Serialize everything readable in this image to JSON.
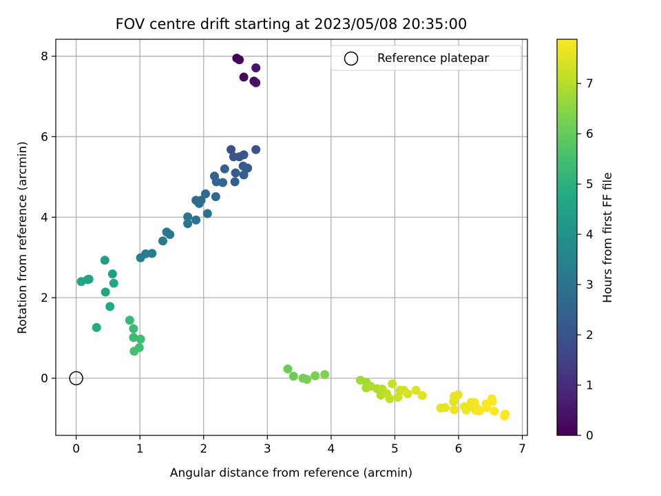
{
  "chart_data": {
    "type": "scatter",
    "title": "FOV centre drift starting at 2023/05/08 20:35:00",
    "xlabel": "Angular distance from reference (arcmin)",
    "ylabel": "Rotation from reference (arcmin)",
    "xlim": [
      -0.32,
      7.08
    ],
    "ylim": [
      -1.42,
      8.42
    ],
    "xticks": [
      0,
      1,
      2,
      3,
      4,
      5,
      6,
      7
    ],
    "yticks": [
      0,
      2,
      4,
      6,
      8
    ],
    "grid": true,
    "legend": {
      "placement": "top-right",
      "label": "Reference platepar"
    },
    "reference_point": {
      "x": 0,
      "y": 0
    },
    "colorbar": {
      "label": "Hours from first FF file",
      "range": [
        0,
        7.88
      ],
      "ticks": [
        0,
        1,
        2,
        3,
        4,
        5,
        6,
        7
      ],
      "colormap": "viridis"
    },
    "points": [
      {
        "x": 2.52,
        "y": 7.95,
        "t": 0.0
      },
      {
        "x": 2.56,
        "y": 7.91,
        "t": 0.1
      },
      {
        "x": 2.63,
        "y": 7.48,
        "t": 0.2
      },
      {
        "x": 2.79,
        "y": 7.38,
        "t": 0.3
      },
      {
        "x": 2.82,
        "y": 7.34,
        "t": 0.4
      },
      {
        "x": 2.82,
        "y": 7.71,
        "t": 0.5
      },
      {
        "x": 2.43,
        "y": 5.68,
        "t": 1.95
      },
      {
        "x": 2.82,
        "y": 5.68,
        "t": 2.0
      },
      {
        "x": 2.47,
        "y": 5.5,
        "t": 2.05
      },
      {
        "x": 2.56,
        "y": 5.5,
        "t": 2.1
      },
      {
        "x": 2.63,
        "y": 5.55,
        "t": 2.15
      },
      {
        "x": 2.62,
        "y": 5.27,
        "t": 2.2
      },
      {
        "x": 2.69,
        "y": 5.22,
        "t": 2.25
      },
      {
        "x": 2.5,
        "y": 5.1,
        "t": 2.3
      },
      {
        "x": 2.63,
        "y": 5.05,
        "t": 2.35
      },
      {
        "x": 2.49,
        "y": 4.88,
        "t": 2.4
      },
      {
        "x": 2.33,
        "y": 5.2,
        "t": 2.45
      },
      {
        "x": 2.17,
        "y": 5.02,
        "t": 2.5
      },
      {
        "x": 2.2,
        "y": 4.88,
        "t": 2.55
      },
      {
        "x": 2.3,
        "y": 4.86,
        "t": 2.6
      },
      {
        "x": 2.19,
        "y": 4.51,
        "t": 2.65
      },
      {
        "x": 2.03,
        "y": 4.58,
        "t": 2.7
      },
      {
        "x": 1.96,
        "y": 4.42,
        "t": 2.75
      },
      {
        "x": 1.88,
        "y": 4.42,
        "t": 2.8
      },
      {
        "x": 1.93,
        "y": 4.34,
        "t": 2.85
      },
      {
        "x": 2.06,
        "y": 4.09,
        "t": 2.9
      },
      {
        "x": 1.75,
        "y": 4.01,
        "t": 2.95
      },
      {
        "x": 1.88,
        "y": 3.93,
        "t": 3.0
      },
      {
        "x": 1.75,
        "y": 3.84,
        "t": 3.05
      },
      {
        "x": 1.42,
        "y": 3.63,
        "t": 3.1
      },
      {
        "x": 1.47,
        "y": 3.57,
        "t": 3.15
      },
      {
        "x": 1.36,
        "y": 3.41,
        "t": 3.2
      },
      {
        "x": 1.19,
        "y": 3.1,
        "t": 3.25
      },
      {
        "x": 1.09,
        "y": 3.09,
        "t": 3.3
      },
      {
        "x": 1.01,
        "y": 2.99,
        "t": 3.35
      },
      {
        "x": 0.45,
        "y": 2.93,
        "t": 4.4
      },
      {
        "x": 0.57,
        "y": 2.59,
        "t": 4.45
      },
      {
        "x": 0.2,
        "y": 2.46,
        "t": 4.5
      },
      {
        "x": 0.18,
        "y": 2.45,
        "t": 4.55
      },
      {
        "x": 0.08,
        "y": 2.4,
        "t": 4.6
      },
      {
        "x": 0.59,
        "y": 2.36,
        "t": 4.65
      },
      {
        "x": 0.46,
        "y": 2.14,
        "t": 4.7
      },
      {
        "x": 0.53,
        "y": 1.78,
        "t": 4.75
      },
      {
        "x": 0.32,
        "y": 1.26,
        "t": 4.8
      },
      {
        "x": 0.84,
        "y": 1.44,
        "t": 5.25
      },
      {
        "x": 0.9,
        "y": 1.23,
        "t": 5.3
      },
      {
        "x": 0.9,
        "y": 1.01,
        "t": 5.35
      },
      {
        "x": 1.01,
        "y": 0.97,
        "t": 5.4
      },
      {
        "x": 0.99,
        "y": 0.76,
        "t": 5.45
      },
      {
        "x": 0.91,
        "y": 0.67,
        "t": 5.5
      },
      {
        "x": 3.32,
        "y": 0.23,
        "t": 6.1
      },
      {
        "x": 3.41,
        "y": 0.05,
        "t": 6.15
      },
      {
        "x": 3.56,
        "y": 0.0,
        "t": 6.2
      },
      {
        "x": 3.62,
        "y": -0.03,
        "t": 6.25
      },
      {
        "x": 3.75,
        "y": 0.06,
        "t": 6.3
      },
      {
        "x": 3.9,
        "y": 0.09,
        "t": 6.35
      },
      {
        "x": 4.46,
        "y": -0.05,
        "t": 6.75
      },
      {
        "x": 4.55,
        "y": -0.1,
        "t": 6.8
      },
      {
        "x": 4.55,
        "y": -0.24,
        "t": 6.85
      },
      {
        "x": 4.62,
        "y": -0.2,
        "t": 6.9
      },
      {
        "x": 4.72,
        "y": -0.26,
        "t": 6.95
      },
      {
        "x": 4.8,
        "y": -0.27,
        "t": 7.0
      },
      {
        "x": 4.78,
        "y": -0.42,
        "t": 7.05
      },
      {
        "x": 4.87,
        "y": -0.38,
        "t": 7.1
      },
      {
        "x": 4.92,
        "y": -0.51,
        "t": 7.15
      },
      {
        "x": 4.96,
        "y": -0.14,
        "t": 7.2
      },
      {
        "x": 5.05,
        "y": -0.47,
        "t": 7.25
      },
      {
        "x": 5.08,
        "y": -0.3,
        "t": 7.3
      },
      {
        "x": 5.14,
        "y": -0.3,
        "t": 7.35
      },
      {
        "x": 5.2,
        "y": -0.39,
        "t": 7.4
      },
      {
        "x": 5.33,
        "y": -0.3,
        "t": 7.45
      },
      {
        "x": 5.43,
        "y": -0.43,
        "t": 7.5
      },
      {
        "x": 5.72,
        "y": -0.74,
        "t": 7.55
      },
      {
        "x": 5.79,
        "y": -0.73,
        "t": 7.55
      },
      {
        "x": 5.93,
        "y": -0.45,
        "t": 7.58
      },
      {
        "x": 5.92,
        "y": -0.58,
        "t": 7.6
      },
      {
        "x": 5.99,
        "y": -0.41,
        "t": 7.62
      },
      {
        "x": 5.93,
        "y": -0.78,
        "t": 7.64
      },
      {
        "x": 6.09,
        "y": -0.71,
        "t": 7.66
      },
      {
        "x": 6.12,
        "y": -0.79,
        "t": 7.68
      },
      {
        "x": 6.17,
        "y": -0.69,
        "t": 7.7
      },
      {
        "x": 6.2,
        "y": -0.6,
        "t": 7.72
      },
      {
        "x": 6.25,
        "y": -0.6,
        "t": 7.74
      },
      {
        "x": 6.27,
        "y": -0.8,
        "t": 7.76
      },
      {
        "x": 6.3,
        "y": -0.76,
        "t": 7.78
      },
      {
        "x": 6.33,
        "y": -0.81,
        "t": 7.8
      },
      {
        "x": 6.43,
        "y": -0.64,
        "t": 7.82
      },
      {
        "x": 6.44,
        "y": -0.73,
        "t": 7.84
      },
      {
        "x": 6.52,
        "y": -0.51,
        "t": 7.85
      },
      {
        "x": 6.56,
        "y": -0.82,
        "t": 7.86
      },
      {
        "x": 6.53,
        "y": -0.58,
        "t": 7.87
      },
      {
        "x": 6.73,
        "y": -0.89,
        "t": 7.87
      },
      {
        "x": 6.72,
        "y": -0.94,
        "t": 7.88
      }
    ]
  }
}
